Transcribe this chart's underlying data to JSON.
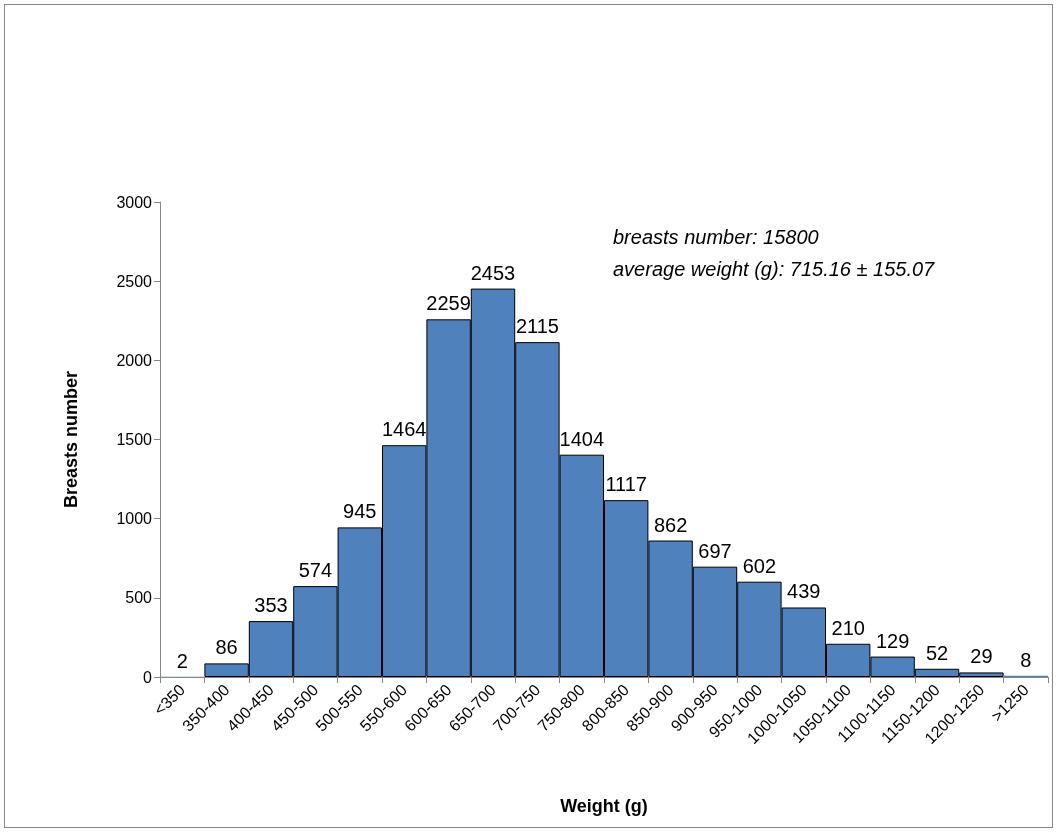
{
  "chart_data": {
    "type": "bar",
    "categories": [
      "<350",
      "350-400",
      "400-450",
      "450-500",
      "500-550",
      "550-600",
      "600-650",
      "650-700",
      "700-750",
      "750-800",
      "800-850",
      "850-900",
      "900-950",
      "950-1000",
      "1000-1050",
      "1050-1100",
      "1100-1150",
      "1150-1200",
      "1200-1250",
      ">1250"
    ],
    "values": [
      2,
      86,
      353,
      574,
      945,
      1464,
      2259,
      2453,
      2115,
      1404,
      1117,
      862,
      697,
      602,
      439,
      210,
      129,
      52,
      29,
      8
    ],
    "color": "#4f81bd",
    "xlabel": "Weight (g)",
    "ylabel": "Breasts number",
    "ylim": [
      0,
      3000
    ],
    "yticks": [
      0,
      500,
      1000,
      1500,
      2000,
      2500,
      3000
    ],
    "annotations": [
      "breasts number: 15800",
      "average weight (g): 715.16 ± 155.07"
    ],
    "data_labels": true,
    "grid": false
  }
}
